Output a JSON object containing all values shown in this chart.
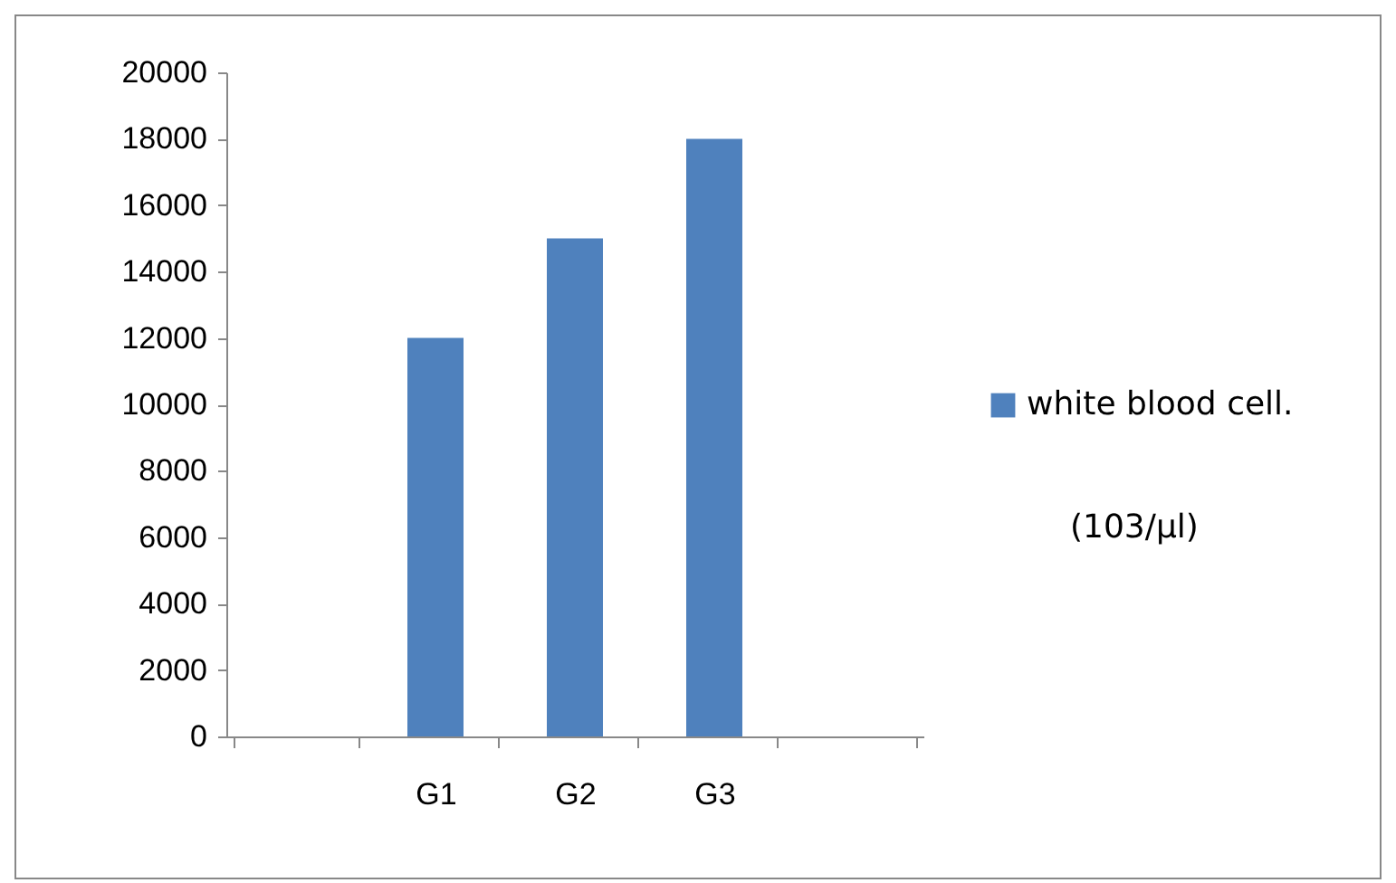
{
  "chart_data": {
    "type": "bar",
    "categories": [
      null,
      "G1",
      "G2",
      "G3",
      null
    ],
    "series": [
      {
        "name": "white blood cell.",
        "color": "#4f81bd",
        "values": [
          null,
          12000,
          15000,
          18000,
          null
        ]
      }
    ],
    "ylim": [
      0,
      20000
    ],
    "yticks": [
      0,
      2000,
      4000,
      6000,
      8000,
      10000,
      12000,
      14000,
      16000,
      18000,
      20000
    ],
    "grid": false,
    "legend": "right",
    "annotations": [
      "(103/µl)"
    ]
  }
}
